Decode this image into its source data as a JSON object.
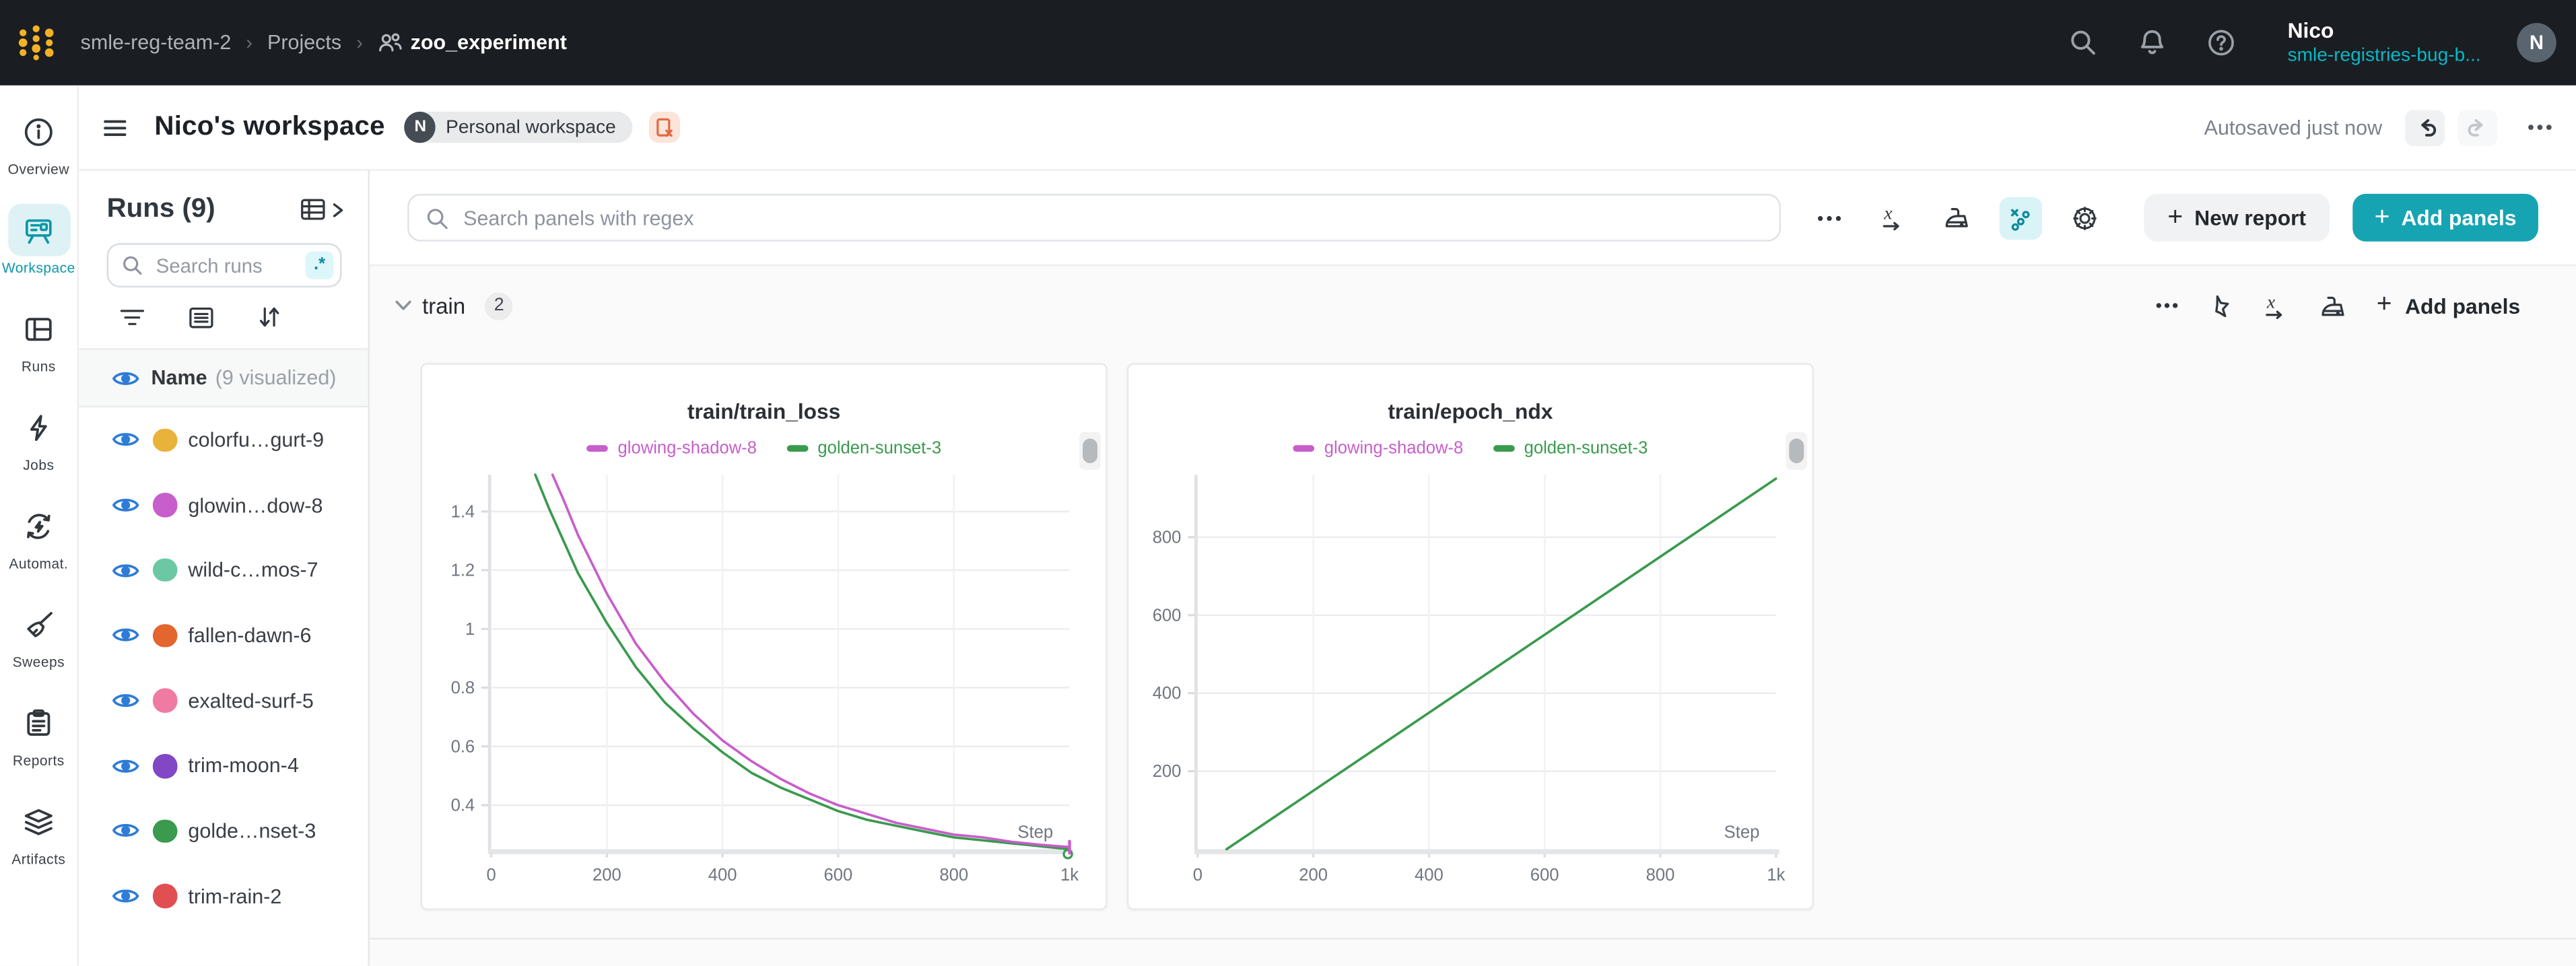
{
  "topnav": {
    "org": "smle-reg-team-2",
    "section": "Projects",
    "project": "zoo_experiment",
    "user_name": "Nico",
    "user_team": "smle-registries-bug-b...",
    "avatar_initial": "N"
  },
  "workspace": {
    "title": "Nico's workspace",
    "badge_initial": "N",
    "badge_label": "Personal workspace",
    "autosave_status": "Autosaved just now"
  },
  "sidebar": {
    "active": "Workspace",
    "items": [
      {
        "label": "Overview"
      },
      {
        "label": "Workspace"
      },
      {
        "label": "Runs"
      },
      {
        "label": "Jobs"
      },
      {
        "label": "Automat."
      },
      {
        "label": "Sweeps"
      },
      {
        "label": "Reports"
      },
      {
        "label": "Artifacts"
      }
    ]
  },
  "runs_panel": {
    "title": "Runs (9)",
    "search_placeholder": "Search runs",
    "regex_badge": ".*",
    "header_name": "Name",
    "header_count": "(9 visualized)",
    "runs": [
      {
        "name": "colorfu…gurt-9",
        "color": "#e9b23a"
      },
      {
        "name": "glowin…dow-8",
        "color": "#c75ecb"
      },
      {
        "name": "wild-c…mos-7",
        "color": "#6cc8a4"
      },
      {
        "name": "fallen-dawn-6",
        "color": "#e2662d"
      },
      {
        "name": "exalted-surf-5",
        "color": "#ef7ba3"
      },
      {
        "name": "trim-moon-4",
        "color": "#8147c5"
      },
      {
        "name": "golde…nset-3",
        "color": "#3a9a4e"
      },
      {
        "name": "trim-rain-2",
        "color": "#e14f52"
      }
    ]
  },
  "toolbar": {
    "search_placeholder": "Search panels with regex",
    "new_report_label": "New report",
    "add_panels_label": "Add panels"
  },
  "section": {
    "name": "train",
    "panel_count": "2",
    "add_panels_label": "Add panels"
  },
  "colors": {
    "accent_teal": "#17a4b2",
    "run_magenta": "#c75ecb",
    "run_green": "#3a9a4e",
    "eye_blue": "#2e7cd6"
  },
  "chart_data": [
    {
      "type": "line",
      "title": "train/train_loss",
      "xlabel": "Step",
      "xlim": [
        0,
        1000
      ],
      "ylim": [
        0.25,
        1.525
      ],
      "grid": true,
      "legend_position": "top",
      "xticks": [
        {
          "v": 0,
          "l": "0"
        },
        {
          "v": 200,
          "l": "200"
        },
        {
          "v": 400,
          "l": "400"
        },
        {
          "v": 600,
          "l": "600"
        },
        {
          "v": 800,
          "l": "800"
        },
        {
          "v": 1000,
          "l": "1k"
        }
      ],
      "yticks": [
        {
          "v": 0.4,
          "l": "0.4"
        },
        {
          "v": 0.6,
          "l": "0.6"
        },
        {
          "v": 0.8,
          "l": "0.8"
        },
        {
          "v": 1.0,
          "l": "1"
        },
        {
          "v": 1.2,
          "l": "1.2"
        },
        {
          "v": 1.4,
          "l": "1.4"
        }
      ],
      "legend": [
        {
          "name": "glowing-shadow-8",
          "color": "#c75ecb"
        },
        {
          "name": "golden-sunset-3",
          "color": "#3a9a4e"
        }
      ],
      "series": [
        {
          "name": "golden-sunset-3",
          "color": "#3a9a4e",
          "end_marker": "circle",
          "points": [
            [
              76,
              1.525
            ],
            [
              100,
              1.41
            ],
            [
              150,
              1.19
            ],
            [
              200,
              1.02
            ],
            [
              250,
              0.87
            ],
            [
              300,
              0.75
            ],
            [
              350,
              0.66
            ],
            [
              400,
              0.58
            ],
            [
              450,
              0.51
            ],
            [
              500,
              0.46
            ],
            [
              550,
              0.42
            ],
            [
              600,
              0.38
            ],
            [
              650,
              0.35
            ],
            [
              700,
              0.33
            ],
            [
              750,
              0.31
            ],
            [
              800,
              0.29
            ],
            [
              850,
              0.28
            ],
            [
              900,
              0.27
            ],
            [
              950,
              0.26
            ],
            [
              1000,
              0.25
            ]
          ]
        },
        {
          "name": "glowing-shadow-8",
          "color": "#c75ecb",
          "end_marker": "tick",
          "points": [
            [
              106,
              1.525
            ],
            [
              125,
              1.44
            ],
            [
              150,
              1.32
            ],
            [
              200,
              1.12
            ],
            [
              250,
              0.95
            ],
            [
              300,
              0.82
            ],
            [
              350,
              0.71
            ],
            [
              400,
              0.62
            ],
            [
              450,
              0.55
            ],
            [
              500,
              0.49
            ],
            [
              550,
              0.44
            ],
            [
              600,
              0.4
            ],
            [
              650,
              0.37
            ],
            [
              700,
              0.34
            ],
            [
              750,
              0.32
            ],
            [
              800,
              0.3
            ],
            [
              850,
              0.29
            ],
            [
              900,
              0.275
            ],
            [
              950,
              0.265
            ],
            [
              1000,
              0.257
            ]
          ]
        }
      ]
    },
    {
      "type": "line",
      "title": "train/epoch_ndx",
      "xlabel": "Step",
      "xlim": [
        0,
        1000
      ],
      "ylim": [
        0,
        960
      ],
      "grid": true,
      "legend_position": "top",
      "xticks": [
        {
          "v": 0,
          "l": "0"
        },
        {
          "v": 200,
          "l": "200"
        },
        {
          "v": 400,
          "l": "400"
        },
        {
          "v": 600,
          "l": "600"
        },
        {
          "v": 800,
          "l": "800"
        },
        {
          "v": 1000,
          "l": "1k"
        }
      ],
      "yticks": [
        {
          "v": 200,
          "l": "200"
        },
        {
          "v": 400,
          "l": "400"
        },
        {
          "v": 600,
          "l": "600"
        },
        {
          "v": 800,
          "l": "800"
        }
      ],
      "legend": [
        {
          "name": "glowing-shadow-8",
          "color": "#c75ecb"
        },
        {
          "name": "golden-sunset-3",
          "color": "#3a9a4e"
        }
      ],
      "series": [
        {
          "name": "golden-sunset-3",
          "color": "#3a9a4e",
          "points": [
            [
              50,
              0
            ],
            [
              200,
              150
            ],
            [
              400,
              350
            ],
            [
              600,
              550
            ],
            [
              800,
              750
            ],
            [
              1000,
              950
            ]
          ]
        }
      ]
    }
  ]
}
